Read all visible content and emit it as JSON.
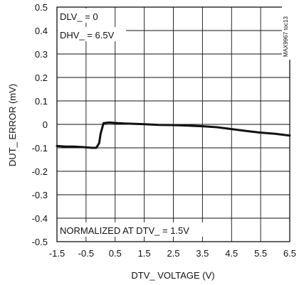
{
  "chart_data": {
    "type": "line",
    "xlabel": "DTV_ VOLTAGE (V)",
    "ylabel": "DUT_ ERROR (mV)",
    "xlim": [
      -1.5,
      6.5
    ],
    "ylim": [
      -0.5,
      0.5
    ],
    "x_ticks": [
      "-1.5",
      "-0.5",
      "0.5",
      "1.5",
      "2.5",
      "3.5",
      "4.5",
      "5.5",
      "6.5"
    ],
    "y_ticks": [
      "0.5",
      "0.4",
      "0.3",
      "0.2",
      "0.1",
      "0",
      "-0.1",
      "-0.2",
      "-0.3",
      "-0.4",
      "-0.5"
    ],
    "grid": true,
    "annotations": {
      "dlv": "DLV_ = 0",
      "dhv": "DHV_ = 6.5V",
      "normalized": "NORMALIZED AT DTV_ = 1.5V",
      "figure_id": "MAX9967 toc13"
    },
    "series": [
      {
        "x": [
          -1.5,
          -1.2,
          -0.9,
          -0.6,
          -0.3,
          -0.15,
          -0.05,
          0.0,
          0.1,
          0.3,
          0.5,
          0.8,
          1.0,
          1.5,
          2.0,
          2.5,
          3.0,
          3.5,
          4.0,
          4.5,
          5.0,
          5.5,
          6.0,
          6.5
        ],
        "y": [
          -0.092,
          -0.095,
          -0.095,
          -0.097,
          -0.1,
          -0.1,
          -0.08,
          -0.04,
          0.005,
          0.008,
          0.006,
          0.004,
          0.003,
          0.001,
          -0.002,
          -0.003,
          -0.005,
          -0.008,
          -0.012,
          -0.02,
          -0.028,
          -0.035,
          -0.04,
          -0.048
        ]
      }
    ]
  }
}
